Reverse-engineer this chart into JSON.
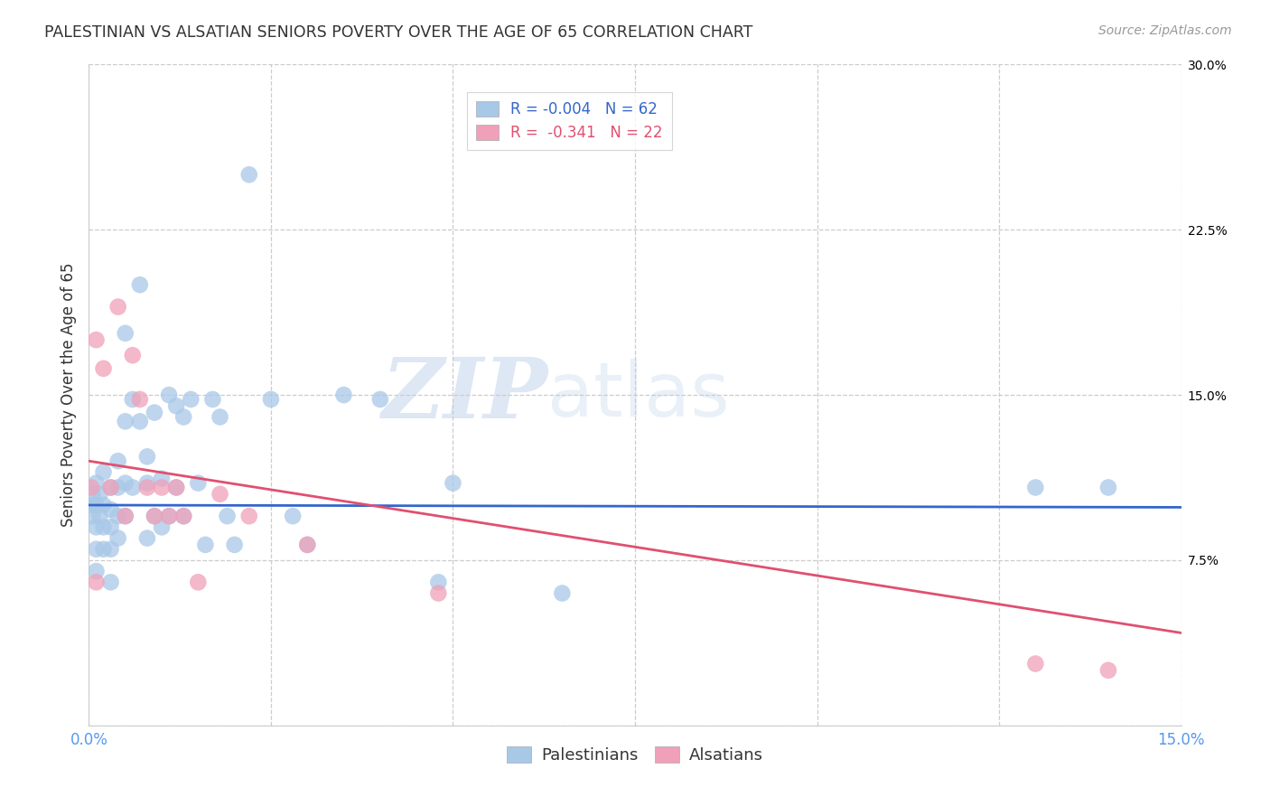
{
  "title": "PALESTINIAN VS ALSATIAN SENIORS POVERTY OVER THE AGE OF 65 CORRELATION CHART",
  "source": "Source: ZipAtlas.com",
  "ylabel": "Seniors Poverty Over the Age of 65",
  "xlim": [
    0.0,
    0.15
  ],
  "ylim": [
    0.0,
    0.3
  ],
  "background_color": "#ffffff",
  "grid_color": "#cccccc",
  "watermark_zip": "ZIP",
  "watermark_atlas": "atlas",
  "blue_color": "#a8c8e8",
  "pink_color": "#f0a0b8",
  "blue_line_color": "#3366cc",
  "pink_line_color": "#e05070",
  "tick_color": "#5599ee",
  "legend_R_blue": "-0.004",
  "legend_N_blue": "62",
  "legend_R_pink": "-0.341",
  "legend_N_pink": "22",
  "blue_x": [
    0.0005,
    0.0005,
    0.0005,
    0.001,
    0.001,
    0.001,
    0.001,
    0.001,
    0.0015,
    0.0015,
    0.002,
    0.002,
    0.002,
    0.002,
    0.003,
    0.003,
    0.003,
    0.003,
    0.003,
    0.004,
    0.004,
    0.004,
    0.004,
    0.005,
    0.005,
    0.005,
    0.005,
    0.006,
    0.006,
    0.007,
    0.007,
    0.008,
    0.008,
    0.008,
    0.009,
    0.009,
    0.01,
    0.01,
    0.011,
    0.011,
    0.012,
    0.012,
    0.013,
    0.013,
    0.014,
    0.015,
    0.016,
    0.017,
    0.018,
    0.019,
    0.02,
    0.022,
    0.025,
    0.028,
    0.03,
    0.035,
    0.04,
    0.048,
    0.05,
    0.065,
    0.13,
    0.14
  ],
  "blue_y": [
    0.105,
    0.1,
    0.095,
    0.11,
    0.1,
    0.09,
    0.08,
    0.07,
    0.105,
    0.095,
    0.115,
    0.1,
    0.09,
    0.08,
    0.108,
    0.098,
    0.09,
    0.08,
    0.065,
    0.12,
    0.108,
    0.095,
    0.085,
    0.178,
    0.138,
    0.11,
    0.095,
    0.148,
    0.108,
    0.2,
    0.138,
    0.122,
    0.11,
    0.085,
    0.142,
    0.095,
    0.112,
    0.09,
    0.15,
    0.095,
    0.145,
    0.108,
    0.14,
    0.095,
    0.148,
    0.11,
    0.082,
    0.148,
    0.14,
    0.095,
    0.082,
    0.25,
    0.148,
    0.095,
    0.082,
    0.15,
    0.148,
    0.065,
    0.11,
    0.06,
    0.108,
    0.108
  ],
  "pink_x": [
    0.0003,
    0.001,
    0.001,
    0.002,
    0.003,
    0.004,
    0.005,
    0.006,
    0.007,
    0.008,
    0.009,
    0.01,
    0.011,
    0.012,
    0.013,
    0.015,
    0.018,
    0.022,
    0.03,
    0.048,
    0.13,
    0.14
  ],
  "pink_y": [
    0.108,
    0.175,
    0.065,
    0.162,
    0.108,
    0.19,
    0.095,
    0.168,
    0.148,
    0.108,
    0.095,
    0.108,
    0.095,
    0.108,
    0.095,
    0.065,
    0.105,
    0.095,
    0.082,
    0.06,
    0.028,
    0.025
  ],
  "blue_trend_x": [
    0.0,
    0.15
  ],
  "blue_trend_y": [
    0.1,
    0.099
  ],
  "pink_trend_x": [
    0.0,
    0.15
  ],
  "pink_trend_y": [
    0.12,
    0.042
  ]
}
